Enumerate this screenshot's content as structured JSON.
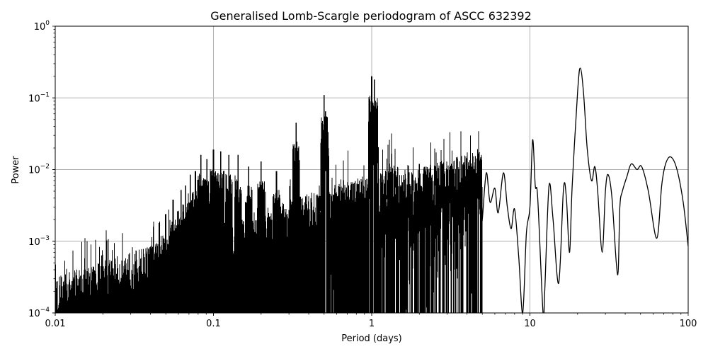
{
  "chart_data": {
    "type": "line",
    "title": "Generalised Lomb-Scargle periodogram of ASCC 632392",
    "xlabel": "Period (days)",
    "ylabel": "Power",
    "xscale": "log",
    "yscale": "log",
    "xlim": [
      0.01,
      100
    ],
    "ylim": [
      0.0001,
      1
    ],
    "grid": true,
    "legend": null,
    "line_color": "#000000",
    "grid_color": "#b0b0b0",
    "x_ticks": [
      {
        "value": 0.01,
        "label": "0.01"
      },
      {
        "value": 0.1,
        "label": "0.1"
      },
      {
        "value": 1,
        "label": "1"
      },
      {
        "value": 10,
        "label": "10"
      },
      {
        "value": 100,
        "label": "100"
      }
    ],
    "y_ticks": [
      {
        "value": 1,
        "label": "10",
        "exp": "0"
      },
      {
        "value": 0.1,
        "label": "10",
        "exp": "−1"
      },
      {
        "value": 0.01,
        "label": "10",
        "exp": "−2"
      },
      {
        "value": 0.001,
        "label": "10",
        "exp": "−3"
      },
      {
        "value": 0.0001,
        "label": "10",
        "exp": "−4"
      }
    ],
    "dense_region": {
      "description": "Dense aliased spikes at harmonics of 1 day (period = 1/n) over a rising noise floor",
      "period_range": [
        0.01,
        5
      ],
      "noise_floor_start": 0.00018,
      "noise_floor_end": 0.003,
      "harmonic_peaks": [
        {
          "period": 0.0417,
          "power": 0.0016
        },
        {
          "period": 0.0455,
          "power": 0.0018
        },
        {
          "period": 0.05,
          "power": 0.0024
        },
        {
          "period": 0.0556,
          "power": 0.0038
        },
        {
          "period": 0.0625,
          "power": 0.0052
        },
        {
          "period": 0.0667,
          "power": 0.006
        },
        {
          "period": 0.0714,
          "power": 0.0085
        },
        {
          "period": 0.0769,
          "power": 0.0095
        },
        {
          "period": 0.0833,
          "power": 0.016
        },
        {
          "period": 0.0909,
          "power": 0.014
        },
        {
          "period": 0.1,
          "power": 0.019
        },
        {
          "period": 0.111,
          "power": 0.018
        },
        {
          "period": 0.125,
          "power": 0.016
        },
        {
          "period": 0.143,
          "power": 0.016
        },
        {
          "period": 0.167,
          "power": 0.011
        },
        {
          "period": 0.2,
          "power": 0.013
        },
        {
          "period": 0.25,
          "power": 0.0095
        },
        {
          "period": 0.333,
          "power": 0.045
        },
        {
          "period": 0.5,
          "power": 0.11
        },
        {
          "period": 0.51,
          "power": 0.065
        },
        {
          "period": 1.0,
          "power": 0.2
        },
        {
          "period": 1.04,
          "power": 0.18
        },
        {
          "period": 2.0,
          "power": 0.012
        },
        {
          "period": 3.0,
          "power": 0.01
        }
      ]
    },
    "smooth_region": {
      "description": "Smooth long-period part of the periodogram",
      "points": [
        [
          5.0,
          0.002
        ],
        [
          5.3,
          0.009
        ],
        [
          5.6,
          0.0035
        ],
        [
          6.0,
          0.0055
        ],
        [
          6.3,
          0.0025
        ],
        [
          6.8,
          0.009
        ],
        [
          7.2,
          0.003
        ],
        [
          7.6,
          0.0015
        ],
        [
          8.0,
          0.0028
        ],
        [
          8.5,
          0.0006
        ],
        [
          9.0,
          0.0001
        ],
        [
          9.5,
          0.0013
        ],
        [
          10.0,
          0.003
        ],
        [
          10.4,
          0.026
        ],
        [
          10.8,
          0.006
        ],
        [
          11.2,
          0.004
        ],
        [
          12.1,
          0.0001
        ],
        [
          12.4,
          0.0002
        ],
        [
          13.2,
          0.0059
        ],
        [
          14.0,
          0.002
        ],
        [
          15.2,
          0.00026
        ],
        [
          16.3,
          0.0054
        ],
        [
          17.0,
          0.004
        ],
        [
          17.8,
          0.0007
        ],
        [
          18.5,
          0.006
        ],
        [
          20.0,
          0.12
        ],
        [
          20.8,
          0.26
        ],
        [
          21.8,
          0.12
        ],
        [
          23.0,
          0.02
        ],
        [
          24.5,
          0.007
        ],
        [
          25.7,
          0.011
        ],
        [
          26.8,
          0.005
        ],
        [
          28.6,
          0.0007
        ],
        [
          30.0,
          0.005
        ],
        [
          31.2,
          0.0085
        ],
        [
          33.0,
          0.004
        ],
        [
          35.8,
          0.00034
        ],
        [
          37.0,
          0.003
        ],
        [
          38.4,
          0.005
        ],
        [
          41.0,
          0.008
        ],
        [
          43.7,
          0.012
        ],
        [
          47.5,
          0.01
        ],
        [
          50.8,
          0.011
        ],
        [
          56.0,
          0.005
        ],
        [
          63.3,
          0.0011
        ],
        [
          68.0,
          0.006
        ],
        [
          72.0,
          0.012
        ],
        [
          77.7,
          0.015
        ],
        [
          85.0,
          0.01
        ],
        [
          93.0,
          0.0035
        ],
        [
          100.0,
          0.00085
        ]
      ]
    }
  }
}
